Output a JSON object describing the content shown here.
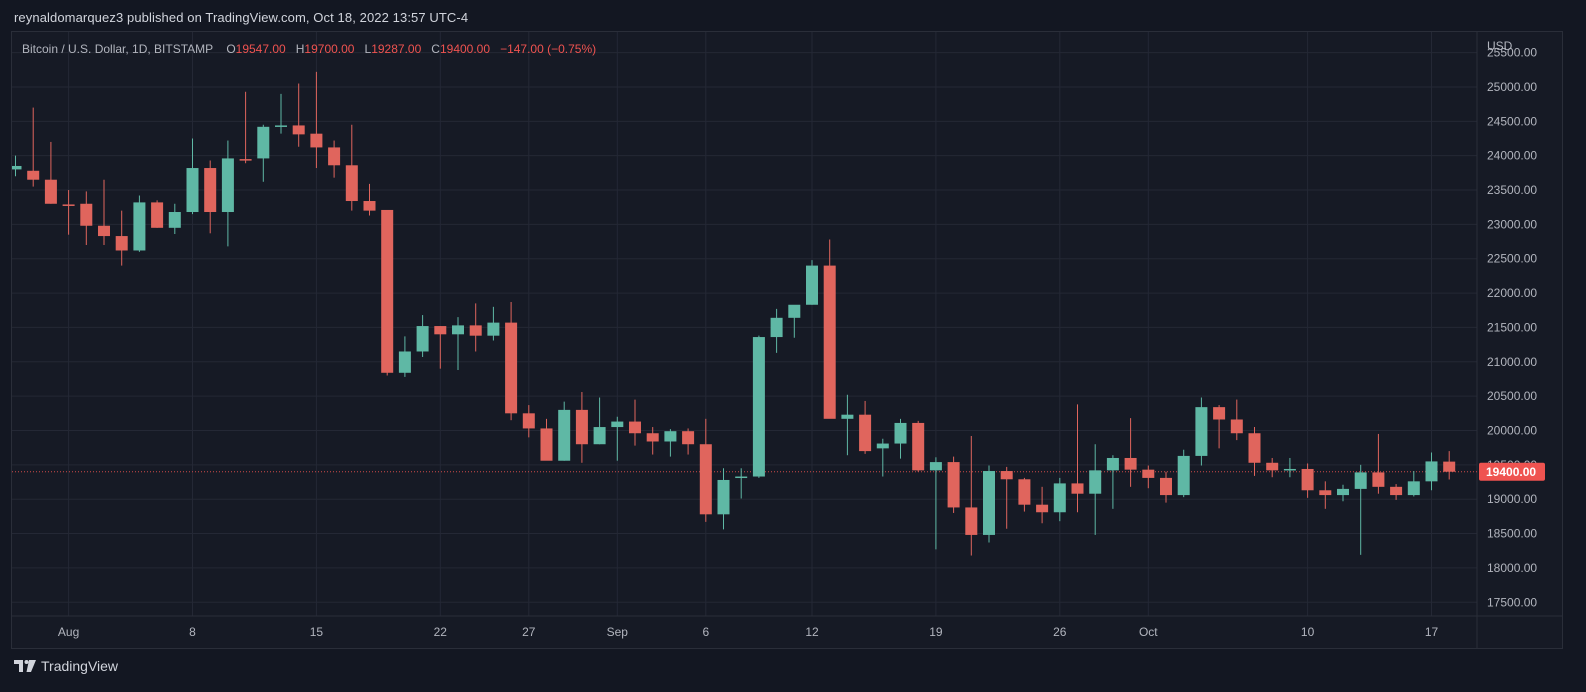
{
  "header": {
    "published": "reynaldomarquez3 published on TradingView.com, Oct 18, 2022 13:57 UTC-4"
  },
  "legend": {
    "symbol": "Bitcoin / U.S. Dollar, 1D, BITSTAMP",
    "o_label": "O",
    "o_value": "19547.00",
    "h_label": "H",
    "h_value": "19700.00",
    "l_label": "L",
    "l_value": "19287.00",
    "c_label": "C",
    "c_value": "19400.00",
    "change": "−147.00 (−0.75%)"
  },
  "footer": {
    "brand": "TradingView"
  },
  "colors": {
    "up": "#26a69a",
    "down": "#ef5350",
    "up_fill": "#5fb8a5",
    "down_fill": "#e0655d",
    "background": "#161a25",
    "grid": "#242835",
    "text": "#b2b5be"
  },
  "chart_data": {
    "type": "candlestick",
    "currency": "USD",
    "price_label": "19400.00",
    "ylim": [
      17300,
      25800
    ],
    "y_ticks": [
      17500,
      18000,
      18500,
      19000,
      19500,
      20000,
      20500,
      21000,
      21500,
      22000,
      22500,
      23000,
      23500,
      24000,
      24500,
      25000,
      25500
    ],
    "y_tick_labels": [
      "17500.00",
      "18000.00",
      "18500.00",
      "19000.00",
      "19500.00",
      "20000.00",
      "20500.00",
      "21000.00",
      "21500.00",
      "22000.00",
      "22500.00",
      "23000.00",
      "23500.00",
      "24000.00",
      "24500.00",
      "25000.00",
      "25500.00"
    ],
    "x_labels": [
      {
        "label": "Aug",
        "date": "2022-08-01"
      },
      {
        "label": "8",
        "date": "2022-08-08"
      },
      {
        "label": "15",
        "date": "2022-08-15"
      },
      {
        "label": "22",
        "date": "2022-08-22"
      },
      {
        "label": "27",
        "date": "2022-08-27"
      },
      {
        "label": "Sep",
        "date": "2022-09-01"
      },
      {
        "label": "6",
        "date": "2022-09-06"
      },
      {
        "label": "12",
        "date": "2022-09-12"
      },
      {
        "label": "19",
        "date": "2022-09-19"
      },
      {
        "label": "26",
        "date": "2022-09-26"
      },
      {
        "label": "Oct",
        "date": "2022-10-01"
      },
      {
        "label": "10",
        "date": "2022-10-10"
      },
      {
        "label": "17",
        "date": "2022-10-17"
      }
    ],
    "candles": [
      {
        "date": "2022-07-29",
        "o": 23800,
        "h": 24000,
        "l": 23700,
        "c": 23850
      },
      {
        "date": "2022-07-30",
        "o": 23780,
        "h": 24700,
        "l": 23550,
        "c": 23650
      },
      {
        "date": "2022-07-31",
        "o": 23650,
        "h": 24200,
        "l": 23300,
        "c": 23300
      },
      {
        "date": "2022-08-01",
        "o": 23290,
        "h": 23500,
        "l": 22850,
        "c": 23280
      },
      {
        "date": "2022-08-02",
        "o": 23300,
        "h": 23480,
        "l": 22700,
        "c": 22980
      },
      {
        "date": "2022-08-03",
        "o": 22980,
        "h": 23650,
        "l": 22700,
        "c": 22830
      },
      {
        "date": "2022-08-04",
        "o": 22830,
        "h": 23200,
        "l": 22400,
        "c": 22620
      },
      {
        "date": "2022-08-05",
        "o": 22620,
        "h": 23420,
        "l": 22600,
        "c": 23320
      },
      {
        "date": "2022-08-06",
        "o": 23320,
        "h": 23350,
        "l": 22950,
        "c": 22950
      },
      {
        "date": "2022-08-07",
        "o": 22950,
        "h": 23300,
        "l": 22860,
        "c": 23180
      },
      {
        "date": "2022-08-08",
        "o": 23180,
        "h": 24250,
        "l": 23150,
        "c": 23820
      },
      {
        "date": "2022-08-09",
        "o": 23820,
        "h": 23930,
        "l": 22870,
        "c": 23180
      },
      {
        "date": "2022-08-10",
        "o": 23180,
        "h": 24220,
        "l": 22680,
        "c": 23960
      },
      {
        "date": "2022-08-11",
        "o": 23950,
        "h": 24930,
        "l": 23890,
        "c": 23930
      },
      {
        "date": "2022-08-12",
        "o": 23960,
        "h": 24450,
        "l": 23620,
        "c": 24420
      },
      {
        "date": "2022-08-13",
        "o": 24420,
        "h": 24900,
        "l": 24320,
        "c": 24440
      },
      {
        "date": "2022-08-14",
        "o": 24440,
        "h": 25050,
        "l": 24130,
        "c": 24310
      },
      {
        "date": "2022-08-15",
        "o": 24320,
        "h": 25220,
        "l": 23820,
        "c": 24120
      },
      {
        "date": "2022-08-16",
        "o": 24120,
        "h": 24220,
        "l": 23680,
        "c": 23860
      },
      {
        "date": "2022-08-17",
        "o": 23860,
        "h": 24450,
        "l": 23200,
        "c": 23340
      },
      {
        "date": "2022-08-18",
        "o": 23340,
        "h": 23590,
        "l": 23130,
        "c": 23200
      },
      {
        "date": "2022-08-19",
        "o": 23210,
        "h": 23210,
        "l": 20800,
        "c": 20840
      },
      {
        "date": "2022-08-20",
        "o": 20840,
        "h": 21370,
        "l": 20780,
        "c": 21150
      },
      {
        "date": "2022-08-21",
        "o": 21150,
        "h": 21680,
        "l": 21070,
        "c": 21520
      },
      {
        "date": "2022-08-22",
        "o": 21520,
        "h": 21520,
        "l": 20900,
        "c": 21400
      },
      {
        "date": "2022-08-23",
        "o": 21400,
        "h": 21650,
        "l": 20880,
        "c": 21530
      },
      {
        "date": "2022-08-24",
        "o": 21530,
        "h": 21850,
        "l": 21150,
        "c": 21380
      },
      {
        "date": "2022-08-25",
        "o": 21380,
        "h": 21800,
        "l": 21310,
        "c": 21570
      },
      {
        "date": "2022-08-26",
        "o": 21570,
        "h": 21870,
        "l": 20150,
        "c": 20250
      },
      {
        "date": "2022-08-27",
        "o": 20250,
        "h": 20370,
        "l": 19900,
        "c": 20030
      },
      {
        "date": "2022-08-28",
        "o": 20030,
        "h": 20170,
        "l": 19600,
        "c": 19560
      },
      {
        "date": "2022-08-29",
        "o": 19560,
        "h": 20420,
        "l": 19560,
        "c": 20300
      },
      {
        "date": "2022-08-30",
        "o": 20300,
        "h": 20560,
        "l": 19530,
        "c": 19800
      },
      {
        "date": "2022-08-31",
        "o": 19800,
        "h": 20480,
        "l": 19800,
        "c": 20050
      },
      {
        "date": "2022-09-01",
        "o": 20050,
        "h": 20200,
        "l": 19560,
        "c": 20130
      },
      {
        "date": "2022-09-02",
        "o": 20130,
        "h": 20450,
        "l": 19780,
        "c": 19960
      },
      {
        "date": "2022-09-03",
        "o": 19960,
        "h": 20050,
        "l": 19650,
        "c": 19840
      },
      {
        "date": "2022-09-04",
        "o": 19840,
        "h": 20020,
        "l": 19620,
        "c": 19990
      },
      {
        "date": "2022-09-05",
        "o": 19990,
        "h": 20030,
        "l": 19650,
        "c": 19800
      },
      {
        "date": "2022-09-06",
        "o": 19800,
        "h": 20170,
        "l": 18670,
        "c": 18780
      },
      {
        "date": "2022-09-07",
        "o": 18780,
        "h": 19450,
        "l": 18560,
        "c": 19280
      },
      {
        "date": "2022-09-08",
        "o": 19310,
        "h": 19450,
        "l": 19010,
        "c": 19330
      },
      {
        "date": "2022-09-09",
        "o": 19330,
        "h": 21380,
        "l": 19310,
        "c": 21360
      },
      {
        "date": "2022-09-10",
        "o": 21360,
        "h": 21770,
        "l": 21130,
        "c": 21640
      },
      {
        "date": "2022-09-11",
        "o": 21640,
        "h": 21810,
        "l": 21350,
        "c": 21830
      },
      {
        "date": "2022-09-12",
        "o": 21830,
        "h": 22480,
        "l": 21830,
        "c": 22400
      },
      {
        "date": "2022-09-13",
        "o": 22400,
        "h": 22780,
        "l": 20180,
        "c": 20170
      },
      {
        "date": "2022-09-14",
        "o": 20170,
        "h": 20520,
        "l": 19640,
        "c": 20230
      },
      {
        "date": "2022-09-15",
        "o": 20230,
        "h": 20430,
        "l": 19660,
        "c": 19700
      },
      {
        "date": "2022-09-16",
        "o": 19740,
        "h": 19880,
        "l": 19330,
        "c": 19810
      },
      {
        "date": "2022-09-17",
        "o": 19810,
        "h": 20170,
        "l": 19590,
        "c": 20110
      },
      {
        "date": "2022-09-18",
        "o": 20110,
        "h": 20140,
        "l": 19400,
        "c": 19420
      },
      {
        "date": "2022-09-19",
        "o": 19420,
        "h": 19610,
        "l": 18270,
        "c": 19540
      },
      {
        "date": "2022-09-20",
        "o": 19540,
        "h": 19620,
        "l": 18800,
        "c": 18880
      },
      {
        "date": "2022-09-21",
        "o": 18880,
        "h": 19920,
        "l": 18180,
        "c": 18480
      },
      {
        "date": "2022-09-22",
        "o": 18480,
        "h": 19490,
        "l": 18370,
        "c": 19410
      },
      {
        "date": "2022-09-23",
        "o": 19410,
        "h": 19470,
        "l": 18570,
        "c": 19290
      },
      {
        "date": "2022-09-24",
        "o": 19290,
        "h": 19310,
        "l": 18820,
        "c": 18920
      },
      {
        "date": "2022-09-25",
        "o": 18920,
        "h": 19180,
        "l": 18650,
        "c": 18810
      },
      {
        "date": "2022-09-26",
        "o": 18810,
        "h": 19310,
        "l": 18680,
        "c": 19230
      },
      {
        "date": "2022-09-27",
        "o": 19230,
        "h": 20380,
        "l": 18810,
        "c": 19080
      },
      {
        "date": "2022-09-28",
        "o": 19080,
        "h": 19800,
        "l": 18480,
        "c": 19420
      },
      {
        "date": "2022-09-29",
        "o": 19420,
        "h": 19640,
        "l": 18860,
        "c": 19600
      },
      {
        "date": "2022-09-30",
        "o": 19600,
        "h": 20180,
        "l": 19180,
        "c": 19430
      },
      {
        "date": "2022-10-01",
        "o": 19430,
        "h": 19490,
        "l": 19160,
        "c": 19310
      },
      {
        "date": "2022-10-02",
        "o": 19310,
        "h": 19400,
        "l": 18950,
        "c": 19060
      },
      {
        "date": "2022-10-03",
        "o": 19060,
        "h": 19720,
        "l": 19030,
        "c": 19630
      },
      {
        "date": "2022-10-04",
        "o": 19630,
        "h": 20480,
        "l": 19490,
        "c": 20340
      },
      {
        "date": "2022-10-05",
        "o": 20340,
        "h": 20370,
        "l": 19740,
        "c": 20160
      },
      {
        "date": "2022-10-06",
        "o": 20160,
        "h": 20450,
        "l": 19860,
        "c": 19960
      },
      {
        "date": "2022-10-07",
        "o": 19960,
        "h": 20050,
        "l": 19340,
        "c": 19530
      },
      {
        "date": "2022-10-08",
        "o": 19530,
        "h": 19600,
        "l": 19320,
        "c": 19420
      },
      {
        "date": "2022-10-09",
        "o": 19420,
        "h": 19600,
        "l": 19320,
        "c": 19440
      },
      {
        "date": "2022-10-10",
        "o": 19440,
        "h": 19520,
        "l": 19020,
        "c": 19130
      },
      {
        "date": "2022-10-11",
        "o": 19130,
        "h": 19260,
        "l": 18860,
        "c": 19060
      },
      {
        "date": "2022-10-12",
        "o": 19060,
        "h": 19210,
        "l": 18970,
        "c": 19150
      },
      {
        "date": "2022-10-13",
        "o": 19150,
        "h": 19500,
        "l": 18190,
        "c": 19390
      },
      {
        "date": "2022-10-14",
        "o": 19390,
        "h": 19950,
        "l": 19080,
        "c": 19180
      },
      {
        "date": "2022-10-15",
        "o": 19180,
        "h": 19220,
        "l": 18990,
        "c": 19060
      },
      {
        "date": "2022-10-16",
        "o": 19060,
        "h": 19410,
        "l": 19040,
        "c": 19260
      },
      {
        "date": "2022-10-17",
        "o": 19260,
        "h": 19680,
        "l": 19130,
        "c": 19550
      },
      {
        "date": "2022-10-18",
        "o": 19547,
        "h": 19700,
        "l": 19287,
        "c": 19400
      }
    ]
  }
}
